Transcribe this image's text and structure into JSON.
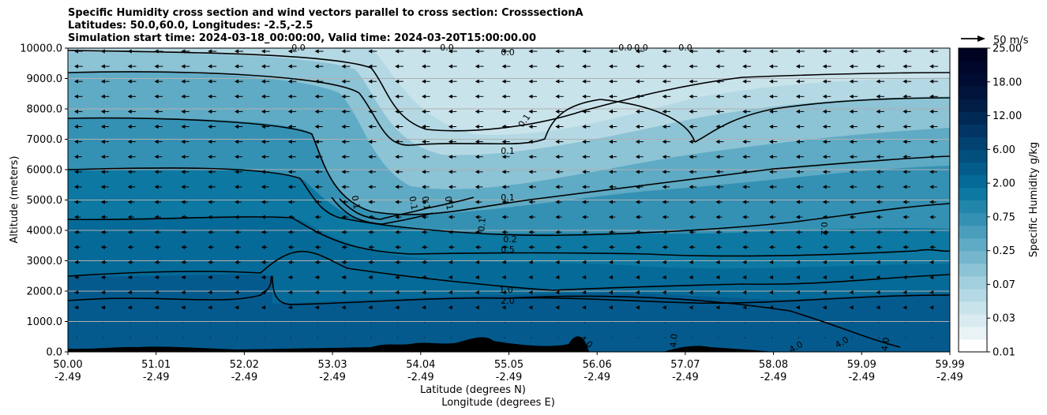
{
  "title_lines": [
    "Specific Humidity cross section and wind vectors parallel to cross section: CrosssectionA",
    "Latitudes: 50.0,60.0, Longitudes: -2.5,-2.5",
    "Simulation start time: 2024-03-18_00:00:00, Valid time: 2024-03-20T15:00:00.00"
  ],
  "chart_data": {
    "type": "heatmap",
    "ylabel": "Altitude (meters)",
    "xlabel_lat": "Latitude (degrees N)",
    "xlabel_lon": "Longitude (degrees E)",
    "ylim": [
      0,
      10000
    ],
    "yticks": [
      "0.0",
      "1000.0",
      "2000.0",
      "3000.0",
      "4000.0",
      "5000.0",
      "6000.0",
      "7000.0",
      "8000.0",
      "9000.0",
      "10000.0"
    ],
    "xticks_lat": [
      "50.00",
      "51.01",
      "52.02",
      "53.03",
      "54.04",
      "55.05",
      "56.06",
      "57.07",
      "58.08",
      "59.09",
      "59.99"
    ],
    "xticks_lon": [
      "-2.49",
      "-2.49",
      "-2.49",
      "-2.49",
      "-2.49",
      "-2.49",
      "-2.49",
      "-2.49",
      "-2.49",
      "-2.49",
      "-2.49"
    ],
    "grid": "horizontal",
    "colorbar": {
      "label": "Specific Humidity g/kg",
      "ticks": [
        "0.01",
        "0.03",
        "0.07",
        "0.25",
        "0.75",
        "2.00",
        "6.00",
        "12.00",
        "18.00",
        "25.00"
      ],
      "colors": [
        "#ffffff",
        "#e9f3f5",
        "#d9ebf0",
        "#c9e3eb",
        "#b5d9e4",
        "#a2cfdd",
        "#8cc3d5",
        "#75b6cd",
        "#5faac4",
        "#4a9ebc",
        "#3591b3",
        "#2285aa",
        "#0d78a1",
        "#056a97",
        "#035c8a",
        "#024f7e",
        "#024270",
        "#023563",
        "#012955",
        "#011d46",
        "#01143b",
        "#010c33",
        "#00072b",
        "#000322"
      ]
    },
    "contour_labels": [
      "0.0",
      "0.1",
      "0.2",
      "0.5",
      "1.0",
      "2.0",
      "4.0"
    ],
    "wind_key": "50 m/s"
  }
}
